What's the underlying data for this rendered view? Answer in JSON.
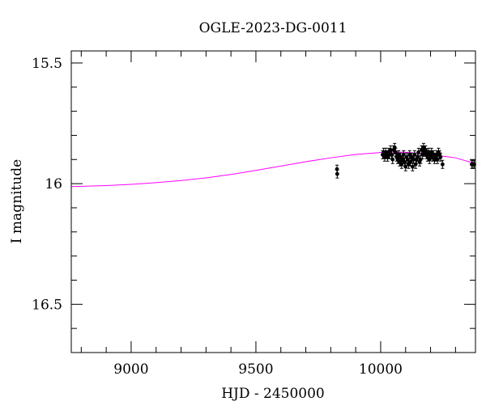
{
  "chart_data": {
    "type": "scatter",
    "title": "OGLE-2023-DG-0011",
    "xlabel": "HJD - 2450000",
    "ylabel": "I magnitude",
    "xlim": [
      8760,
      10380
    ],
    "ylim": [
      16.7,
      15.45
    ],
    "y_inverted": true,
    "grid": false,
    "x_ticks": [
      {
        "value": 9000,
        "label": "9000"
      },
      {
        "value": 9500,
        "label": "9500"
      },
      {
        "value": 10000,
        "label": "10000"
      }
    ],
    "y_ticks": [
      {
        "value": 15.5,
        "label": "15.5"
      },
      {
        "value": 16.0,
        "label": "16"
      },
      {
        "value": 16.5,
        "label": "16.5"
      }
    ],
    "series": [
      {
        "kind": "points",
        "color": "#000000",
        "x": [
          9825,
          9826,
          10008,
          10012,
          10016,
          10020,
          10024,
          10028,
          10032,
          10036,
          10040,
          10044,
          10048,
          10052,
          10056,
          10060,
          10064,
          10068,
          10072,
          10076,
          10080,
          10084,
          10088,
          10092,
          10096,
          10100,
          10104,
          10108,
          10112,
          10116,
          10120,
          10124,
          10128,
          10132,
          10136,
          10140,
          10144,
          10148,
          10152,
          10156,
          10160,
          10164,
          10168,
          10172,
          10176,
          10180,
          10184,
          10188,
          10192,
          10196,
          10200,
          10204,
          10208,
          10212,
          10216,
          10220,
          10224,
          10228,
          10232,
          10236,
          10240,
          10248,
          10365,
          10370,
          10375
        ],
        "y": [
          15.94,
          15.96,
          15.88,
          15.87,
          15.89,
          15.87,
          15.88,
          15.89,
          15.87,
          15.88,
          15.86,
          15.88,
          15.9,
          15.86,
          15.85,
          15.87,
          15.89,
          15.9,
          15.88,
          15.91,
          15.89,
          15.92,
          15.9,
          15.88,
          15.91,
          15.93,
          15.89,
          15.9,
          15.92,
          15.88,
          15.91,
          15.89,
          15.93,
          15.9,
          15.88,
          15.92,
          15.9,
          15.89,
          15.87,
          15.91,
          15.9,
          15.86,
          15.88,
          15.85,
          15.87,
          15.86,
          15.88,
          15.89,
          15.87,
          15.9,
          15.88,
          15.87,
          15.89,
          15.88,
          15.9,
          15.89,
          15.88,
          15.9,
          15.87,
          15.88,
          15.89,
          15.92,
          15.92,
          15.92,
          15.92
        ]
      },
      {
        "kind": "model-curve",
        "color": "#ff00ff",
        "x": [
          8760,
          8900,
          9000,
          9100,
          9200,
          9300,
          9400,
          9500,
          9600,
          9700,
          9800,
          9900,
          10000,
          10050,
          10100,
          10150,
          10200,
          10250,
          10300,
          10350,
          10380
        ],
        "y": [
          16.012,
          16.008,
          16.003,
          15.996,
          15.987,
          15.976,
          15.962,
          15.945,
          15.927,
          15.909,
          15.893,
          15.879,
          15.871,
          15.869,
          15.87,
          15.874,
          15.88,
          15.886,
          15.893,
          15.908,
          15.915
        ]
      }
    ]
  }
}
